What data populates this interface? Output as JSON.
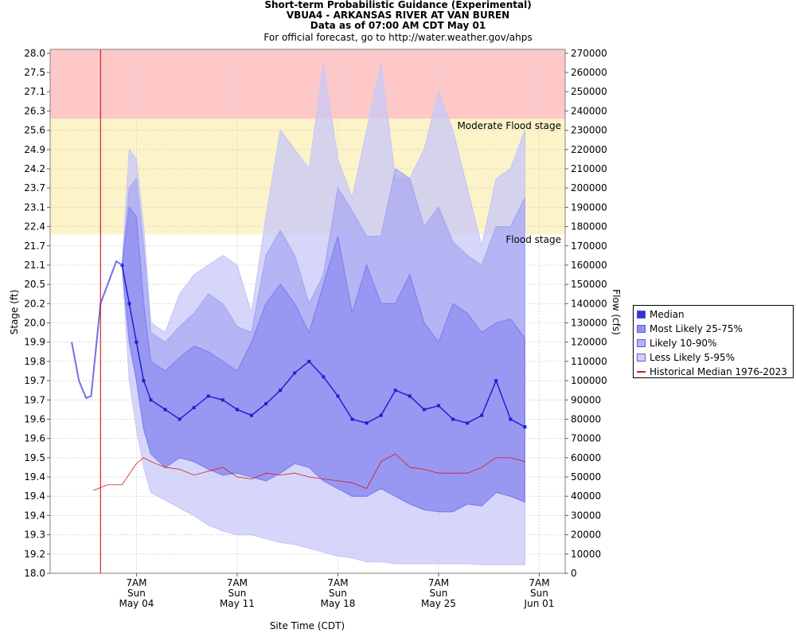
{
  "title": {
    "line1": "Short-term Probabilistic Guidance (Experimental)",
    "line2": "VBUA4 - ARKANSAS RIVER AT VAN BUREN",
    "line3": "Data as of 07:00 AM CDT May 01",
    "line4": "For official forecast, go to http://water.weather.gov/ahps"
  },
  "colors": {
    "moderate_band": "#ffc8c8",
    "flood_band": "#fcf3c8",
    "band_5_95": "#c8c8f8",
    "band_10_90": "#a6a6f4",
    "band_25_75": "#8080ee",
    "median_line": "#2020d0",
    "historical_line": "#d81818",
    "now_line": "#c00000"
  },
  "chart_data": {
    "type": "area",
    "title": "Short-term Probabilistic Guidance (Experimental)",
    "xlabel": "Site Time (CDT)",
    "ylabel": "Stage (ft)",
    "y2label": "Flow (cfs)",
    "x_start": "Apr 28",
    "x_ticks": [
      {
        "day": 6,
        "l1": "7AM",
        "l2": "Sun",
        "l3": "May 04"
      },
      {
        "day": 13,
        "l1": "7AM",
        "l2": "Sun",
        "l3": "May 11"
      },
      {
        "day": 20,
        "l1": "7AM",
        "l2": "Sun",
        "l3": "May 18"
      },
      {
        "day": 27,
        "l1": "7AM",
        "l2": "Sun",
        "l3": "May 25"
      },
      {
        "day": 34,
        "l1": "7AM",
        "l2": "Sun",
        "l3": "Jun 01"
      }
    ],
    "flow_ticks": [
      0,
      10000,
      20000,
      30000,
      40000,
      50000,
      60000,
      70000,
      80000,
      90000,
      100000,
      110000,
      120000,
      130000,
      140000,
      150000,
      160000,
      170000,
      180000,
      190000,
      200000,
      210000,
      220000,
      230000,
      240000,
      250000,
      260000,
      270000
    ],
    "stage_ticks": [
      "18.0",
      "19.2",
      "19.3",
      "19.4",
      "19.4",
      "19.4",
      "19.5",
      "19.6",
      "19.6",
      "19.7",
      "19.7",
      "19.8",
      "19.9",
      "20.0",
      "20.2",
      "20.5",
      "21.1",
      "21.7",
      "22.4",
      "23.1",
      "23.7",
      "24.2",
      "24.9",
      "25.6",
      "26.3",
      "27.1",
      "27.5",
      "28.0"
    ],
    "ylim_flow": [
      0,
      272000
    ],
    "flood_stage_flow": 176000,
    "moderate_stage_flow": 236000,
    "forecast_start_day": 3.5,
    "observed": {
      "x": [
        1.5,
        2.0,
        2.5,
        2.85,
        3.5,
        4.0,
        4.6,
        5.0
      ],
      "y": [
        120000,
        100000,
        91000,
        92000,
        140000,
        150000,
        162000,
        160000
      ]
    },
    "series": [
      {
        "name": "Median",
        "x": [
          5.0,
          5.5,
          6.0,
          6.5,
          7.0,
          8.0,
          9.0,
          10.0,
          11.0,
          12.0,
          13.0,
          14.0,
          15.0,
          16.0,
          17.0,
          18.0,
          19.0,
          20.0,
          21.0,
          22.0,
          23.0,
          24.0,
          25.0,
          26.0,
          27.0,
          28.0,
          29.0,
          30.0,
          31.0,
          32.0,
          33.0
        ],
        "y": [
          160000,
          140000,
          120000,
          100000,
          90000,
          85000,
          80000,
          86000,
          92000,
          90000,
          85000,
          82000,
          88000,
          95000,
          104000,
          110000,
          102000,
          92000,
          80000,
          78000,
          82000,
          95000,
          92000,
          85000,
          87000,
          80000,
          78000,
          82000,
          100000,
          80000,
          76000
        ]
      },
      {
        "name": "Most Likely 25-75%",
        "x": [
          5.0,
          5.5,
          6.0,
          6.5,
          7.0,
          8.0,
          9.0,
          10.0,
          11.0,
          12.0,
          13.0,
          14.0,
          15.0,
          16.0,
          17.0,
          18.0,
          19.0,
          20.0,
          21.0,
          22.0,
          23.0,
          24.0,
          25.0,
          26.0,
          27.0,
          28.0,
          29.0,
          30.0,
          31.0,
          32.0,
          33.0
        ],
        "upper": [
          160000,
          190000,
          185000,
          140000,
          110000,
          105000,
          112000,
          118000,
          115000,
          110000,
          105000,
          120000,
          140000,
          150000,
          140000,
          125000,
          150000,
          175000,
          135000,
          160000,
          140000,
          140000,
          155000,
          130000,
          120000,
          140000,
          135000,
          125000,
          130000,
          132000,
          122000
        ],
        "lower": [
          160000,
          120000,
          100000,
          75000,
          62000,
          55000,
          60000,
          58000,
          54000,
          51000,
          52000,
          50000,
          48000,
          52000,
          57000,
          55000,
          48000,
          44000,
          40000,
          40000,
          44000,
          40000,
          36000,
          33000,
          32000,
          32000,
          36000,
          35000,
          42000,
          40000,
          37000
        ]
      },
      {
        "name": "Likely 10-90%",
        "x": [
          5.0,
          5.5,
          6.0,
          6.5,
          7.0,
          8.0,
          9.0,
          10.0,
          11.0,
          12.0,
          13.0,
          14.0,
          15.0,
          16.0,
          17.0,
          18.0,
          19.0,
          20.0,
          21.0,
          22.0,
          23.0,
          24.0,
          25.0,
          26.0,
          27.0,
          28.0,
          29.0,
          30.0,
          31.0,
          32.0,
          33.0
        ],
        "upper": [
          160000,
          200000,
          205000,
          170000,
          125000,
          120000,
          128000,
          135000,
          145000,
          140000,
          128000,
          125000,
          165000,
          178000,
          165000,
          140000,
          155000,
          200000,
          188000,
          175000,
          175000,
          210000,
          205000,
          180000,
          190000,
          172000,
          165000,
          160000,
          180000,
          180000,
          195000
        ]
      },
      {
        "name": "Less Likely 5-95%",
        "x": [
          5.0,
          5.5,
          6.0,
          6.5,
          7.0,
          8.0,
          9.0,
          10.0,
          11.0,
          12.0,
          13.0,
          14.0,
          15.0,
          16.0,
          17.0,
          18.0,
          19.0,
          20.0,
          21.0,
          22.0,
          23.0,
          24.0,
          25.0,
          26.0,
          27.0,
          28.0,
          29.0,
          30.0,
          31.0,
          32.0,
          33.0
        ],
        "upper": [
          160000,
          220000,
          215000,
          180000,
          130000,
          125000,
          145000,
          155000,
          160000,
          165000,
          160000,
          135000,
          185000,
          230000,
          220000,
          210000,
          265000,
          215000,
          195000,
          230000,
          265000,
          205000,
          205000,
          220000,
          250000,
          230000,
          200000,
          170000,
          205000,
          210000,
          230000
        ],
        "lower": [
          160000,
          100000,
          75000,
          55000,
          42000,
          38000,
          34000,
          30000,
          25000,
          22000,
          20000,
          20000,
          18000,
          16000,
          15000,
          13000,
          11000,
          9000,
          8000,
          6000,
          6000,
          5000,
          5000,
          5000,
          5000,
          5000,
          5000,
          4500,
          4500,
          4500,
          4500
        ]
      },
      {
        "name": "Historical Median 1976-2023",
        "x": [
          3.0,
          4.0,
          5.0,
          6.0,
          6.5,
          7.0,
          8.0,
          9.0,
          10.0,
          11.0,
          12.0,
          13.0,
          14.0,
          15.0,
          16.0,
          17.0,
          18.0,
          19.0,
          20.0,
          21.0,
          22.0,
          23.0,
          24.0,
          25.0,
          26.0,
          27.0,
          28.0,
          29.0,
          30.0,
          31.0,
          32.0,
          33.0
        ],
        "y": [
          43000,
          46000,
          46000,
          57000,
          60000,
          58000,
          55000,
          54000,
          51000,
          53000,
          55000,
          50000,
          49000,
          52000,
          51000,
          52000,
          50000,
          49000,
          48000,
          47000,
          44000,
          58000,
          62000,
          55000,
          54000,
          52000,
          52000,
          52000,
          55000,
          60000,
          60000,
          58000
        ]
      }
    ],
    "annotations": [
      "Moderate Flood stage",
      "Flood stage"
    ]
  },
  "legend": {
    "items": [
      {
        "label": "Median"
      },
      {
        "label": "Most Likely 25-75%"
      },
      {
        "label": "Likely 10-90%"
      },
      {
        "label": "Less Likely 5-95%"
      },
      {
        "label": "Historical Median 1976-2023"
      }
    ]
  }
}
